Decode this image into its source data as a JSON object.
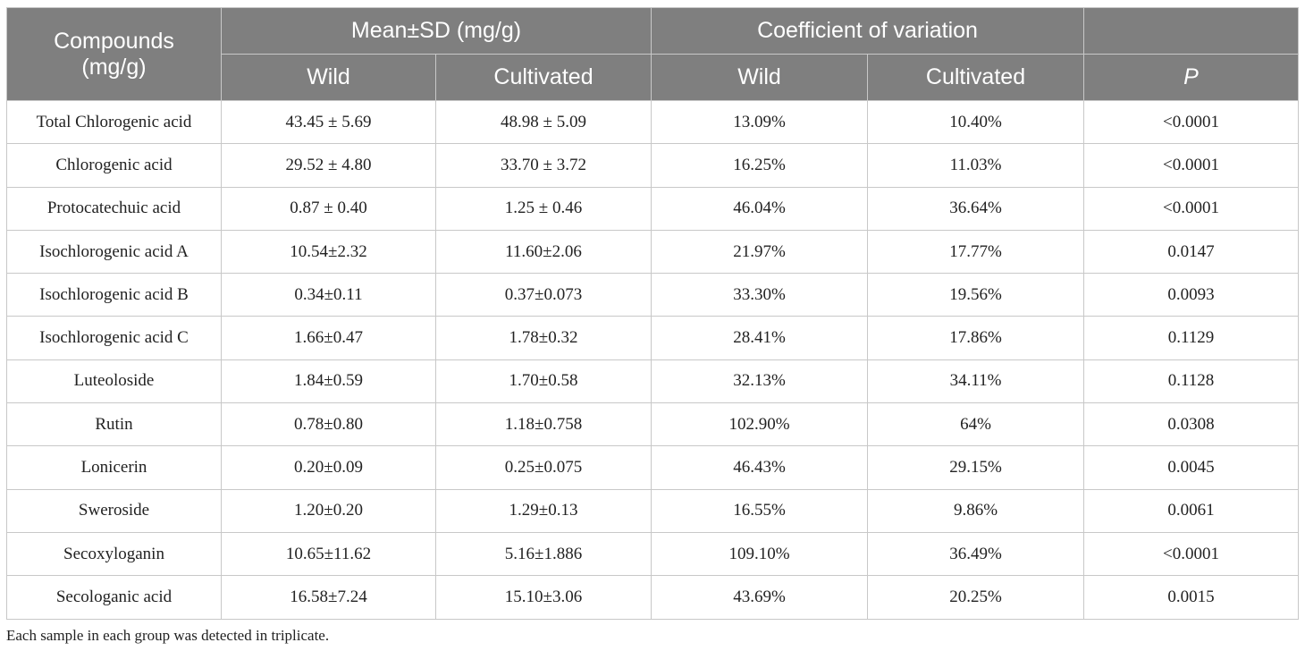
{
  "header": {
    "compounds_line1": "Compounds",
    "compounds_line2": "(mg/g)",
    "group_mean_sd": "Mean±SD (mg/g)",
    "group_cv": "Coefficient of variation",
    "sub_wild_1": "Wild",
    "sub_cultivated_1": "Cultivated",
    "sub_wild_2": "Wild",
    "sub_cultivated_2": "Cultivated",
    "p_label": "P"
  },
  "rows": [
    {
      "compound": "Total Chlorogenic acid",
      "mean_wild": "43.45 ± 5.69",
      "mean_cultivated": "48.98 ± 5.09",
      "cv_wild": "13.09%",
      "cv_cultivated": "10.40%",
      "p": "<0.0001"
    },
    {
      "compound": "Chlorogenic acid",
      "mean_wild": "29.52 ± 4.80",
      "mean_cultivated": "33.70 ± 3.72",
      "cv_wild": "16.25%",
      "cv_cultivated": "11.03%",
      "p": "<0.0001"
    },
    {
      "compound": "Protocatechuic acid",
      "mean_wild": "0.87 ± 0.40",
      "mean_cultivated": "1.25 ± 0.46",
      "cv_wild": "46.04%",
      "cv_cultivated": "36.64%",
      "p": "<0.0001"
    },
    {
      "compound": "Isochlorogenic acid A",
      "mean_wild": "10.54±2.32",
      "mean_cultivated": "11.60±2.06",
      "cv_wild": "21.97%",
      "cv_cultivated": "17.77%",
      "p": "0.0147"
    },
    {
      "compound": "Isochlorogenic acid B",
      "mean_wild": "0.34±0.11",
      "mean_cultivated": "0.37±0.073",
      "cv_wild": "33.30%",
      "cv_cultivated": "19.56%",
      "p": "0.0093"
    },
    {
      "compound": "Isochlorogenic acid C",
      "mean_wild": "1.66±0.47",
      "mean_cultivated": "1.78±0.32",
      "cv_wild": "28.41%",
      "cv_cultivated": "17.86%",
      "p": "0.1129"
    },
    {
      "compound": "Luteoloside",
      "mean_wild": "1.84±0.59",
      "mean_cultivated": "1.70±0.58",
      "cv_wild": "32.13%",
      "cv_cultivated": "34.11%",
      "p": "0.1128"
    },
    {
      "compound": "Rutin",
      "mean_wild": "0.78±0.80",
      "mean_cultivated": "1.18±0.758",
      "cv_wild": "102.90%",
      "cv_cultivated": "64%",
      "p": "0.0308"
    },
    {
      "compound": "Lonicerin",
      "mean_wild": "0.20±0.09",
      "mean_cultivated": "0.25±0.075",
      "cv_wild": "46.43%",
      "cv_cultivated": "29.15%",
      "p": "0.0045"
    },
    {
      "compound": "Sweroside",
      "mean_wild": "1.20±0.20",
      "mean_cultivated": "1.29±0.13",
      "cv_wild": "16.55%",
      "cv_cultivated": "9.86%",
      "p": "0.0061"
    },
    {
      "compound": "Secoxyloganin",
      "mean_wild": "10.65±11.62",
      "mean_cultivated": "5.16±1.886",
      "cv_wild": "109.10%",
      "cv_cultivated": "36.49%",
      "p": "<0.0001"
    },
    {
      "compound": "Secologanic acid",
      "mean_wild": "16.58±7.24",
      "mean_cultivated": "15.10±3.06",
      "cv_wild": "43.69%",
      "cv_cultivated": "20.25%",
      "p": "0.0015"
    }
  ],
  "footnote": "Each sample in each group was detected in triplicate.",
  "colors": {
    "header_bg": "#7f7f7f",
    "header_text": "#ffffff",
    "border": "#c8c8c8"
  }
}
